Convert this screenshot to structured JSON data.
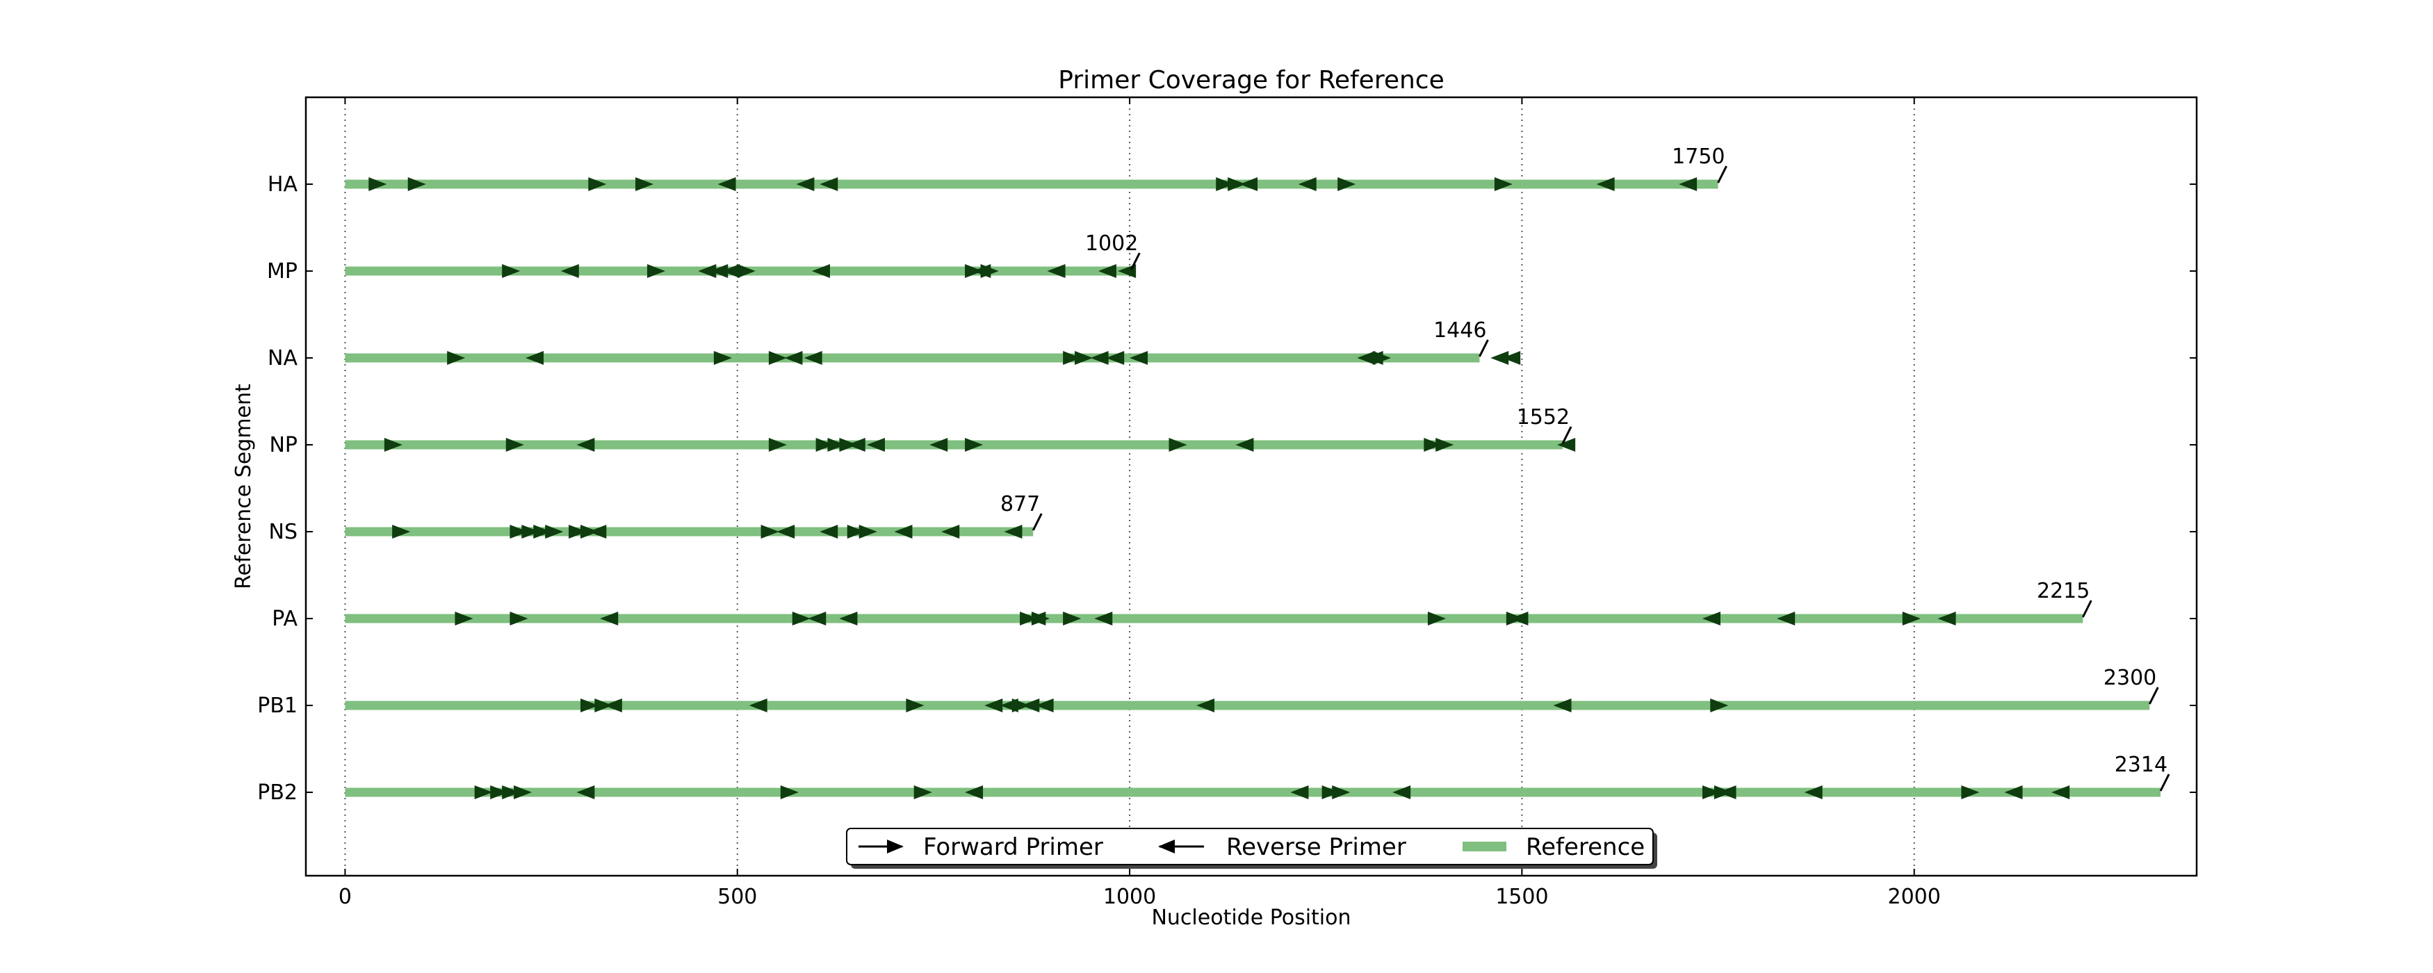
{
  "chart_data": {
    "type": "line",
    "title": "Primer Coverage for Reference",
    "xlabel": "Nucleotide Position",
    "ylabel": "Reference Segment",
    "xlim": [
      -50,
      2360
    ],
    "x_ticks": [
      "0",
      "500",
      "1000",
      "1500",
      "2000"
    ],
    "x_tick_values": [
      0,
      500,
      1000,
      1500,
      2000
    ],
    "grid": "vertical-dotted",
    "legend": {
      "placement": "bottom-center",
      "entries": [
        "Forward Primer",
        "Reverse Primer",
        "Reference"
      ]
    },
    "colors": {
      "reference": "#7fbf7f",
      "primer": "#0f3d0f",
      "legend_primer": "#000000"
    },
    "segments": [
      {
        "name": "PB2",
        "length": 2314,
        "length_label": "2314",
        "forward": [
          165,
          185,
          200,
          215,
          555,
          725,
          1245,
          1258,
          1730,
          1745,
          2060
        ],
        "reverse": [
          295,
          790,
          1205,
          1335,
          1750,
          1860,
          2115,
          2175
        ]
      },
      {
        "name": "PB1",
        "length": 2300,
        "length_label": "2300",
        "forward": [
          300,
          318,
          715,
          850,
          1740
        ],
        "reverse": [
          330,
          515,
          815,
          835,
          862,
          880,
          1085,
          1540
        ]
      },
      {
        "name": "PA",
        "length": 2215,
        "length_label": "2215",
        "forward": [
          140,
          210,
          570,
          860,
          875,
          915,
          1380,
          1480,
          1985
        ],
        "reverse": [
          325,
          590,
          630,
          870,
          955,
          1485,
          1730,
          1825,
          2030
        ]
      },
      {
        "name": "NS",
        "length": 877,
        "length_label": "877",
        "forward": [
          60,
          210,
          225,
          240,
          255,
          285,
          300,
          530,
          640,
          655
        ],
        "reverse": [
          310,
          550,
          605,
          700,
          760,
          840
        ]
      },
      {
        "name": "NP",
        "length": 1552,
        "length_label": "1552",
        "forward": [
          50,
          205,
          540,
          600,
          615,
          630,
          790,
          1050,
          1375,
          1390
        ],
        "reverse": [
          295,
          640,
          665,
          745,
          1135,
          1545
        ]
      },
      {
        "name": "NA",
        "length": 1446,
        "length_label": "1446",
        "forward": [
          130,
          470,
          540,
          915,
          930,
          1310
        ],
        "reverse": [
          230,
          560,
          585,
          950,
          970,
          1000,
          1290,
          1300,
          1460,
          1475
        ]
      },
      {
        "name": "MP",
        "length": 1002,
        "length_label": "1002",
        "forward": [
          200,
          385,
          500,
          790,
          810
        ],
        "reverse": [
          275,
          450,
          465,
          480,
          595,
          800,
          895,
          960,
          985
        ]
      },
      {
        "name": "HA",
        "length": 1750,
        "length_label": "1750",
        "forward": [
          30,
          80,
          310,
          370,
          1110,
          1125,
          1265,
          1465
        ],
        "reverse": [
          475,
          575,
          605,
          1140,
          1215,
          1595,
          1700
        ]
      }
    ]
  }
}
